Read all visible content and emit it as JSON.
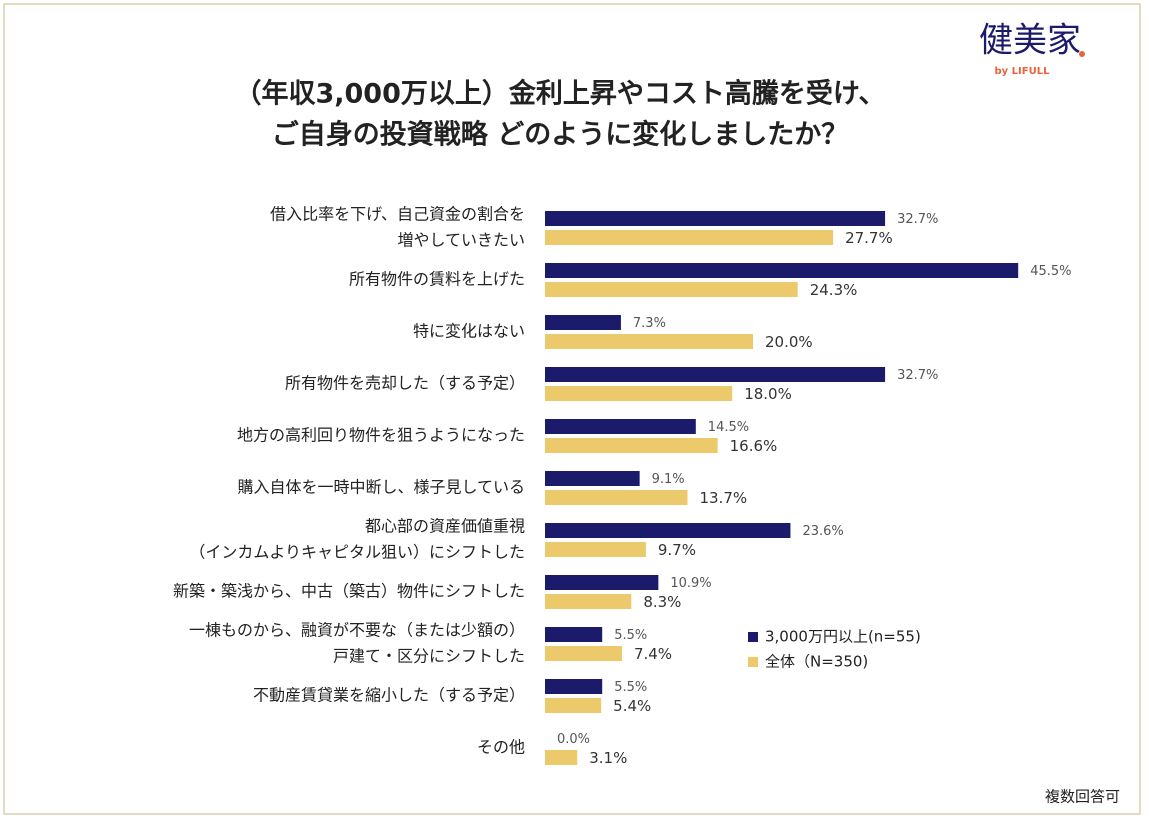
{
  "brand": {
    "name": "健美家",
    "byline": "by LIFULL"
  },
  "footnote": "複数回答可",
  "chart_data": {
    "type": "hbar",
    "title": [
      "（年収3,000万以上）金利上昇やコスト高騰を受け、",
      "ご自身の投資戦略 どのように変化しましたか？"
    ],
    "categories": [
      [
        "借入比率を下げ、自己資金の割合を",
        "増やしていきたい"
      ],
      [
        "所有物件の賃料を上げた"
      ],
      [
        "特に変化はない"
      ],
      [
        "所有物件を売却した（する予定）"
      ],
      [
        "地方の高利回り物件を狙うようになった"
      ],
      [
        "購入自体を一時中断し、様子見している"
      ],
      [
        "都心部の資産価値重視",
        "（インカムよりキャピタル狙い）にシフトした"
      ],
      [
        "新築・築浅から、中古（築古）物件にシフトした"
      ],
      [
        "一棟ものから、融資が不要な（または少額の）",
        "戸建て・区分にシフトした"
      ],
      [
        "不動産賃貸業を縮小した（する予定）"
      ],
      [
        "その他"
      ]
    ],
    "series": [
      {
        "name": "3,000万円以上(n=55)",
        "color": "#1b1a6b",
        "values": [
          32.7,
          45.5,
          7.3,
          32.7,
          14.5,
          9.1,
          23.6,
          10.9,
          5.5,
          5.5,
          0.0
        ],
        "value_labels": [
          "32.7%",
          "45.5%",
          "7.3%",
          "32.7%",
          "14.5%",
          "9.1%",
          "23.6%",
          "10.9%",
          "5.5%",
          "5.5%",
          "0.0%"
        ]
      },
      {
        "name": "全体（N=350)",
        "color": "#ecc96a",
        "values": [
          27.7,
          24.3,
          20.0,
          18.0,
          16.6,
          13.7,
          9.7,
          8.3,
          7.4,
          5.4,
          3.1
        ],
        "value_labels": [
          "27.7%",
          "24.3%",
          "20.0%",
          "18.0%",
          "16.6%",
          "13.7%",
          "9.7%",
          "8.3%",
          "7.4%",
          "5.4%",
          "3.1%"
        ]
      }
    ]
  }
}
